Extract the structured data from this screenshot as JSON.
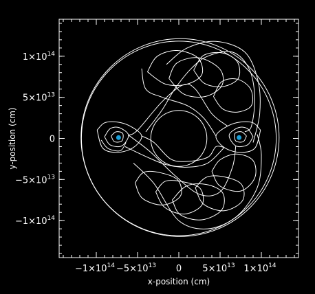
{
  "chart_data": {
    "type": "line",
    "title": "",
    "xlabel": "x-position (cm)",
    "ylabel": "y-position (cm)",
    "xlim": [
      -145000000000000.0,
      145000000000000.0
    ],
    "ylim": [
      -145000000000000.0,
      145000000000000.0
    ],
    "x_ticks": [
      {
        "value": -100000000000000.0,
        "text": "−1×10",
        "exp": "14"
      },
      {
        "value": -50000000000000.0,
        "text": "−5×10",
        "exp": "13"
      },
      {
        "value": 0,
        "text": "0",
        "exp": ""
      },
      {
        "value": 50000000000000.0,
        "text": "5×10",
        "exp": "13"
      },
      {
        "value": 100000000000000.0,
        "text": "1×10",
        "exp": "14"
      }
    ],
    "y_ticks": [
      {
        "value": 100000000000000.0,
        "text": "1×10",
        "exp": "14"
      },
      {
        "value": 50000000000000.0,
        "text": "5×10",
        "exp": "13"
      },
      {
        "value": 0,
        "text": "0",
        "exp": ""
      },
      {
        "value": -50000000000000.0,
        "text": "−5×10",
        "exp": "13"
      },
      {
        "value": -100000000000000.0,
        "text": "−1×10",
        "exp": "14"
      }
    ],
    "grid": false,
    "colors": {
      "background": "#000000",
      "frame": "#ffffff",
      "orbit": "#ffffff",
      "bodies": "#1a9fd8"
    },
    "bodies": [
      {
        "x": -73000000000000.0,
        "y": 1000000000000.0
      },
      {
        "x": 73000000000000.0,
        "y": 1000000000000.0
      }
    ],
    "orbit_segments": [
      {
        "points": [
          [
            -99000000000000.0,
            10000000000000.0
          ],
          [
            -90000000000000.0,
            19000000000000.0
          ],
          [
            -75000000000000.0,
            20000000000000.0
          ],
          [
            -59000000000000.0,
            15000000000000.0
          ],
          [
            -45000000000000.0,
            3000000000000.0
          ],
          [
            -55000000000000.0,
            -11000000000000.0
          ],
          [
            -74000000000000.0,
            -17000000000000.0
          ],
          [
            -92000000000000.0,
            -12000000000000.0
          ],
          [
            -99000000000000.0,
            10000000000000.0
          ]
        ]
      },
      {
        "points": [
          [
            -90000000000000.0,
            2000000000000.0
          ],
          [
            -83000000000000.0,
            12000000000000.0
          ],
          [
            -72000000000000.0,
            13000000000000.0
          ],
          [
            -61000000000000.0,
            4000000000000.0
          ],
          [
            -69000000000000.0,
            -9000000000000.0
          ],
          [
            -83000000000000.0,
            -8000000000000.0
          ],
          [
            -90000000000000.0,
            2000000000000.0
          ]
        ]
      },
      {
        "points": [
          [
            -82000000000000.0,
            3000000000000.0
          ],
          [
            -76000000000000.0,
            8000000000000.0
          ],
          [
            -68000000000000.0,
            6000000000000.0
          ],
          [
            -69000000000000.0,
            -3000000000000.0
          ],
          [
            -78000000000000.0,
            -4000000000000.0
          ],
          [
            -82000000000000.0,
            3000000000000.0
          ]
        ]
      },
      {
        "points": [
          [
            -94000000000000.0,
            -2000000000000.0
          ],
          [
            -86000000000000.0,
            -12000000000000.0
          ],
          [
            -71000000000000.0,
            -15000000000000.0
          ],
          [
            -64000000000000.0,
            -5000000000000.0
          ]
        ]
      },
      {
        "points": [
          [
            99000000000000.0,
            10000000000000.0
          ],
          [
            90000000000000.0,
            19000000000000.0
          ],
          [
            75000000000000.0,
            20000000000000.0
          ],
          [
            59000000000000.0,
            15000000000000.0
          ],
          [
            45000000000000.0,
            3000000000000.0
          ],
          [
            55000000000000.0,
            -11000000000000.0
          ],
          [
            74000000000000.0,
            -17000000000000.0
          ],
          [
            92000000000000.0,
            -12000000000000.0
          ],
          [
            99000000000000.0,
            10000000000000.0
          ]
        ]
      },
      {
        "points": [
          [
            90000000000000.0,
            2000000000000.0
          ],
          [
            83000000000000.0,
            12000000000000.0
          ],
          [
            72000000000000.0,
            13000000000000.0
          ],
          [
            61000000000000.0,
            4000000000000.0
          ],
          [
            69000000000000.0,
            -9000000000000.0
          ],
          [
            83000000000000.0,
            -8000000000000.0
          ],
          [
            90000000000000.0,
            2000000000000.0
          ]
        ]
      },
      {
        "points": [
          [
            82000000000000.0,
            3000000000000.0
          ],
          [
            76000000000000.0,
            8000000000000.0
          ],
          [
            68000000000000.0,
            6000000000000.0
          ],
          [
            69000000000000.0,
            -3000000000000.0
          ],
          [
            78000000000000.0,
            -4000000000000.0
          ],
          [
            82000000000000.0,
            3000000000000.0
          ]
        ]
      },
      {
        "points": [
          [
            -61000000000000.0,
            4000000000000.0
          ],
          [
            -50000000000000.0,
            10000000000000.0
          ],
          [
            -20000000000000.0,
            45000000000000.0
          ],
          [
            5000000000000.0,
            65000000000000.0
          ],
          [
            20000000000000.0,
            60000000000000.0
          ],
          [
            40000000000000.0,
            30000000000000.0
          ],
          [
            59000000000000.0,
            15000000000000.0
          ]
        ]
      },
      {
        "points": [
          [
            -61000000000000.0,
            4000000000000.0
          ],
          [
            -35000000000000.0,
            -16000000000000.0
          ],
          [
            -5000000000000.0,
            -45000000000000.0
          ],
          [
            25000000000000.0,
            -68000000000000.0
          ],
          [
            50000000000000.0,
            -65000000000000.0
          ],
          [
            65000000000000.0,
            -35000000000000.0
          ],
          [
            69000000000000.0,
            -9000000000000.0
          ]
        ]
      },
      {
        "points": [
          [
            -45000000000000.0,
            3000000000000.0
          ],
          [
            -30000000000000.0,
            -5000000000000.0
          ],
          [
            -10000000000000.0,
            -25000000000000.0
          ],
          [
            10000000000000.0,
            -28000000000000.0
          ],
          [
            35000000000000.0,
            -23000000000000.0
          ],
          [
            45000000000000.0,
            -10000000000000.0
          ],
          [
            55000000000000.0,
            -11000000000000.0
          ]
        ]
      },
      {
        "points": [
          [
            -40000000000000.0,
            8000000000000.0
          ],
          [
            -20000000000000.0,
            35000000000000.0
          ],
          [
            -5000000000000.0,
            60000000000000.0
          ],
          [
            15000000000000.0,
            85000000000000.0
          ],
          [
            35000000000000.0,
            100000000000000.0
          ],
          [
            65000000000000.0,
            105000000000000.0
          ],
          [
            85000000000000.0,
            85000000000000.0
          ],
          [
            92000000000000.0,
            50000000000000.0
          ],
          [
            88000000000000.0,
            15000000000000.0
          ],
          [
            80000000000000.0,
            8000000000000.0
          ]
        ]
      },
      {
        "points": [
          [
            -12000000000000.0,
            73000000000000.0
          ],
          [
            -2000000000000.0,
            92000000000000.0
          ],
          [
            25000000000000.0,
            98000000000000.0
          ],
          [
            50000000000000.0,
            84000000000000.0
          ],
          [
            52000000000000.0,
            64000000000000.0
          ],
          [
            32000000000000.0,
            51000000000000.0
          ],
          [
            6000000000000.0,
            54000000000000.0
          ],
          [
            -12000000000000.0,
            73000000000000.0
          ]
        ]
      },
      {
        "points": [
          [
            18000000000000.0,
            83000000000000.0
          ],
          [
            30000000000000.0,
            101000000000000.0
          ],
          [
            53000000000000.0,
            104000000000000.0
          ],
          [
            71000000000000.0,
            93000000000000.0
          ],
          [
            72000000000000.0,
            73000000000000.0
          ],
          [
            53000000000000.0,
            63000000000000.0
          ],
          [
            31000000000000.0,
            67000000000000.0
          ],
          [
            18000000000000.0,
            83000000000000.0
          ]
        ]
      },
      {
        "points": [
          [
            42000000000000.0,
            51000000000000.0
          ],
          [
            52000000000000.0,
            69000000000000.0
          ],
          [
            71000000000000.0,
            72000000000000.0
          ],
          [
            87000000000000.0,
            60000000000000.0
          ],
          [
            88000000000000.0,
            40000000000000.0
          ],
          [
            71000000000000.0,
            32000000000000.0
          ],
          [
            53000000000000.0,
            36000000000000.0
          ],
          [
            42000000000000.0,
            51000000000000.0
          ]
        ]
      },
      {
        "points": [
          [
            -38000000000000.0,
            81000000000000.0
          ],
          [
            -26000000000000.0,
            100000000000000.0
          ],
          [
            -2000000000000.0,
            107000000000000.0
          ],
          [
            23000000000000.0,
            98000000000000.0
          ],
          [
            28000000000000.0,
            78000000000000.0
          ],
          [
            10000000000000.0,
            66000000000000.0
          ],
          [
            -16000000000000.0,
            66000000000000.0
          ],
          [
            -38000000000000.0,
            81000000000000.0
          ]
        ]
      },
      {
        "points": [
          [
            -15000000000000.0,
            90000000000000.0
          ],
          [
            10000000000000.0,
            110000000000000.0
          ],
          [
            45000000000000.0,
            118000000000000.0
          ],
          [
            80000000000000.0,
            105000000000000.0
          ],
          [
            96000000000000.0,
            70000000000000.0
          ],
          [
            98000000000000.0,
            30000000000000.0
          ],
          [
            90000000000000.0,
            -5000000000000.0
          ]
        ]
      },
      {
        "points": [
          [
            -45000000000000.0,
            85000000000000.0
          ],
          [
            -40000000000000.0,
            60000000000000.0
          ],
          [
            -20000000000000.0,
            50000000000000.0
          ],
          [
            10000000000000.0,
            40000000000000.0
          ],
          [
            30000000000000.0,
            25000000000000.0
          ],
          [
            45000000000000.0,
            3000000000000.0
          ]
        ]
      },
      {
        "points": [
          [
            -53000000000000.0,
            -54000000000000.0
          ],
          [
            -44000000000000.0,
            -73000000000000.0
          ],
          [
            -19000000000000.0,
            -81000000000000.0
          ],
          [
            2000000000000.0,
            -70000000000000.0
          ],
          [
            -1000000000000.0,
            -51000000000000.0
          ],
          [
            -21000000000000.0,
            -42000000000000.0
          ],
          [
            -42000000000000.0,
            -41000000000000.0
          ],
          [
            -53000000000000.0,
            -54000000000000.0
          ]
        ]
      },
      {
        "points": [
          [
            -28000000000000.0,
            -65000000000000.0
          ],
          [
            -17000000000000.0,
            -84000000000000.0
          ],
          [
            7000000000000.0,
            -92000000000000.0
          ],
          [
            28000000000000.0,
            -81000000000000.0
          ],
          [
            26000000000000.0,
            -61000000000000.0
          ],
          [
            6000000000000.0,
            -53000000000000.0
          ],
          [
            -16000000000000.0,
            -52000000000000.0
          ],
          [
            -28000000000000.0,
            -65000000000000.0
          ]
        ]
      },
      {
        "points": [
          [
            -8000000000000.0,
            -75000000000000.0
          ],
          [
            2000000000000.0,
            -93000000000000.0
          ],
          [
            28000000000000.0,
            -99000000000000.0
          ],
          [
            52000000000000.0,
            -87000000000000.0
          ],
          [
            53000000000000.0,
            -66000000000000.0
          ],
          [
            33000000000000.0,
            -56000000000000.0
          ],
          [
            9000000000000.0,
            -58000000000000.0
          ],
          [
            -8000000000000.0,
            -75000000000000.0
          ]
        ]
      },
      {
        "points": [
          [
            20000000000000.0,
            -60000000000000.0
          ],
          [
            30000000000000.0,
            -80000000000000.0
          ],
          [
            55000000000000.0,
            -88000000000000.0
          ],
          [
            77000000000000.0,
            -76000000000000.0
          ],
          [
            76000000000000.0,
            -56000000000000.0
          ],
          [
            56000000000000.0,
            -47000000000000.0
          ],
          [
            34000000000000.0,
            -47000000000000.0
          ],
          [
            20000000000000.0,
            -60000000000000.0
          ]
        ]
      },
      {
        "points": [
          [
            40000000000000.0,
            -40000000000000.0
          ],
          [
            50000000000000.0,
            -58000000000000.0
          ],
          [
            75000000000000.0,
            -64000000000000.0
          ],
          [
            92000000000000.0,
            -48000000000000.0
          ],
          [
            90000000000000.0,
            -27000000000000.0
          ],
          [
            70000000000000.0,
            -19000000000000.0
          ],
          [
            50000000000000.0,
            -26000000000000.0
          ],
          [
            40000000000000.0,
            -40000000000000.0
          ]
        ]
      },
      {
        "points": [
          [
            -55000000000000.0,
            -30000000000000.0
          ],
          [
            -30000000000000.0,
            -55000000000000.0
          ],
          [
            0.0,
            -100000000000000.0
          ],
          [
            35000000000000.0,
            -110000000000000.0
          ],
          [
            70000000000000.0,
            -95000000000000.0
          ],
          [
            95000000000000.0,
            -60000000000000.0
          ],
          [
            100000000000000.0,
            -20000000000000.0
          ],
          [
            95000000000000.0,
            5000000000000.0
          ]
        ]
      },
      {
        "points": [
          [
            55000000000000.0,
            -11000000000000.0
          ],
          [
            35000000000000.0,
            -30000000000000.0
          ],
          [
            10000000000000.0,
            -35000000000000.0
          ],
          [
            -15000000000000.0,
            -32000000000000.0
          ],
          [
            -40000000000000.0,
            -22000000000000.0
          ],
          [
            -65000000000000.0,
            -10000000000000.0
          ]
        ]
      }
    ],
    "circles": [
      {
        "cx": 0,
        "cy": 0,
        "r": 118000000000000.0
      },
      {
        "cx": 1500000000000.0,
        "cy": 1000000000000.0,
        "r": 120000000000000.0
      },
      {
        "cx": 0,
        "cy": 0,
        "r": 34000000000000.0
      }
    ],
    "axes_box": {
      "x0": -145000000000000.0,
      "x1": 145000000000000.0,
      "y0": -145000000000000.0,
      "y1": 145000000000000.0
    }
  }
}
